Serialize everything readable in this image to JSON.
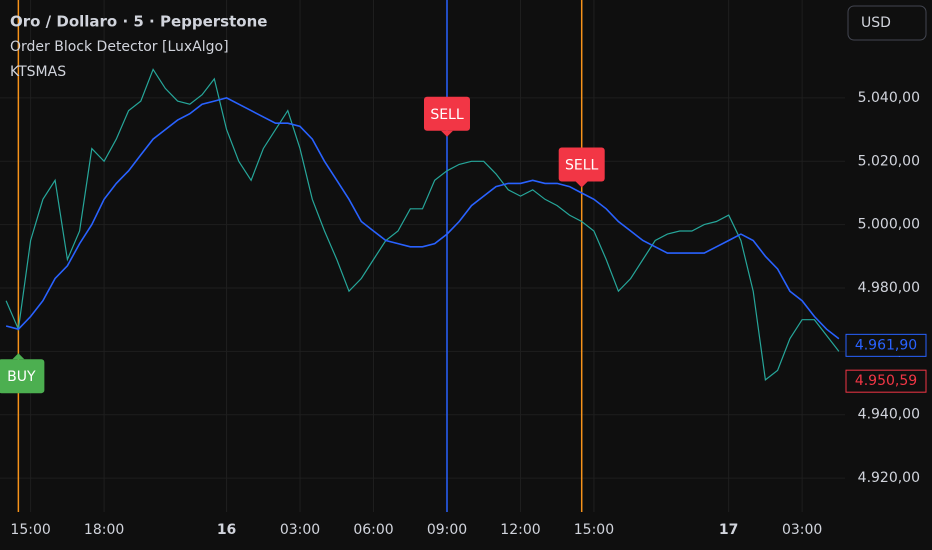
{
  "chart_data": {
    "type": "line",
    "title": "Oro / Dollaro · 5 · Pepperstone",
    "indicators": [
      "Order Block Detector [LuxAlgo]"
    ],
    "currency": "USD",
    "categories": [
      null,
      null,
      "15:00",
      null,
      null,
      null,
      null,
      null,
      "18:00",
      null,
      null,
      null,
      null,
      null,
      null,
      null,
      null,
      null,
      "16",
      null,
      null,
      null,
      null,
      null,
      "03:00",
      null,
      null,
      null,
      null,
      null,
      "06:00",
      null,
      null,
      null,
      null,
      null,
      "09:00",
      null,
      null,
      null,
      null,
      null,
      "12:00",
      null,
      null,
      null,
      null,
      null,
      "15:00",
      null,
      null,
      null,
      null,
      null,
      null,
      null,
      null,
      null,
      null,
      "17",
      null,
      null,
      null,
      null,
      null,
      "03:00",
      null,
      null,
      null
    ],
    "series": [
      {
        "color": "#26a69a",
        "values": [
          4976,
          4967,
          4995,
          5008,
          5014,
          4989,
          4998,
          5024,
          5020,
          5027,
          5036,
          5039,
          5049,
          5043,
          5039,
          5038,
          5041,
          5046,
          5030,
          5020,
          5014,
          5024,
          5030,
          5036,
          5024,
          5008,
          4998,
          4989,
          4979,
          4983,
          4989,
          4995,
          4998,
          5005,
          5005,
          5014,
          5017,
          5019,
          5020,
          5020,
          5016,
          5011,
          5009,
          5011,
          5008,
          5006,
          5003,
          5001,
          4998,
          4989,
          4979,
          4983,
          4989,
          4995,
          4997,
          4998,
          4998,
          5000,
          5001,
          5003,
          4995,
          4979,
          4951,
          4954,
          4964,
          4970,
          4970,
          4965,
          4960
        ]
      },
      {
        "name": "KTSMAS",
        "color": "#2962ff",
        "values": [
          4968,
          4967,
          4971,
          4976,
          4983,
          4987,
          4994,
          5000,
          5008,
          5013,
          5017,
          5022,
          5027,
          5030,
          5033,
          5035,
          5038,
          5039,
          5040,
          5038,
          5036,
          5034,
          5032,
          5032,
          5031,
          5027,
          5020,
          5014,
          5008,
          5001,
          4998,
          4995,
          4994,
          4993,
          4993,
          4994,
          4997,
          5001,
          5006,
          5009,
          5012,
          5013,
          5013,
          5014,
          5013,
          5013,
          5012,
          5010,
          5008,
          5005,
          5001,
          4998,
          4995,
          4993,
          4991,
          4991,
          4991,
          4991,
          4993,
          4995,
          4997,
          4995,
          4990,
          4986,
          4979,
          4976,
          4971,
          4967,
          4964
        ]
      }
    ],
    "signals": [
      {
        "label": "BUY",
        "at": 1,
        "color": "#4caf50",
        "line_color": "#f7931a"
      },
      {
        "label": "SELL",
        "at": 36,
        "color": "#f23645",
        "line_color": "#2962ff"
      },
      {
        "label": "SELL",
        "at": 47,
        "color": "#f23645",
        "line_color": "#f7931a"
      }
    ],
    "price_labels": [
      {
        "value": 4961.9,
        "label": "4.961,90",
        "color": "#2962ff"
      },
      {
        "value": 4950.59,
        "label": "4.950,59",
        "color": "#f23645"
      }
    ],
    "ylim": [
      4909.3,
      5070.9
    ],
    "yticks": [
      {
        "value": 4920,
        "label": "4.920,00"
      },
      {
        "value": 4940,
        "label": "4.940,00"
      },
      {
        "value": 4960,
        "label": "4.960,00"
      },
      {
        "value": 4980,
        "label": "4.980,00"
      },
      {
        "value": 5000,
        "label": "5.000,00"
      },
      {
        "value": 5020,
        "label": "5.020,00"
      },
      {
        "value": 5040,
        "label": "5.040,00"
      }
    ],
    "grid": true
  }
}
